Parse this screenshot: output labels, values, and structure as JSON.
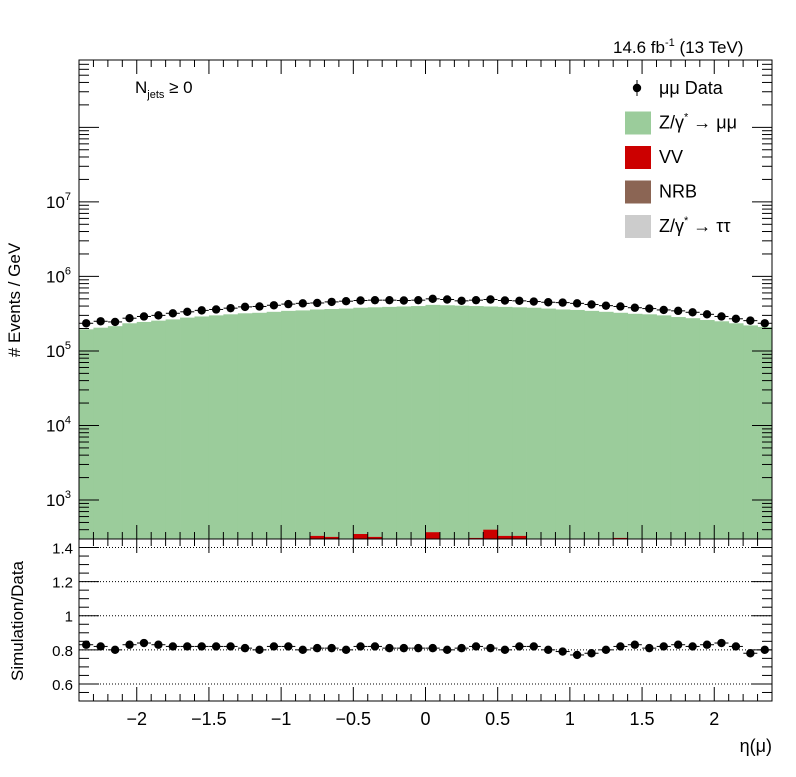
{
  "header": {
    "lumi": "14.6 fb",
    "lumi_exp": "-1",
    "energy": " (13 TeV)"
  },
  "annotation": {
    "main": "N",
    "sub": "jets",
    "rest": " ≥ 0"
  },
  "colors": {
    "zmumu": "#9bcc9b",
    "vv": "#cc0000",
    "nrb": "#8b6554",
    "ztautau": "#cccccc",
    "data": "#000000"
  },
  "chart_data": [
    {
      "type": "bar",
      "xlabel": "η(μ)",
      "ylabel": "# Events / GeV",
      "xlim": [
        -2.4,
        2.4
      ],
      "ylim": [
        300,
        800000000
      ],
      "yscale": "log",
      "y_ticks": [
        {
          "value": 1000,
          "base": "10",
          "exp": "3"
        },
        {
          "value": 10000,
          "base": "10",
          "exp": "4"
        },
        {
          "value": 100000,
          "base": "10",
          "exp": "5"
        },
        {
          "value": 1000000,
          "base": "10",
          "exp": "6"
        },
        {
          "value": 10000000,
          "base": "10",
          "exp": "7"
        }
      ],
      "legend": {
        "position": "top-right",
        "entries": [
          {
            "label": "μμ Data",
            "kind": "marker"
          },
          {
            "label": "Z/γ",
            "sup": "*",
            "tail": " → μμ",
            "kind": "fill",
            "color": "#9bcc9b"
          },
          {
            "label": "VV",
            "kind": "fill",
            "color": "#cc0000"
          },
          {
            "label": "NRB",
            "kind": "fill",
            "color": "#8b6554"
          },
          {
            "label": "Z/γ",
            "sup": "*",
            "tail": " → ττ",
            "kind": "fill",
            "color": "#cccccc"
          }
        ]
      },
      "bin_edges_start": -2.4,
      "bin_width": 0.1,
      "stack": [
        {
          "name": "Z/γ* → μμ",
          "values": [
            195000,
            205000,
            215000,
            235000,
            245000,
            255000,
            265000,
            280000,
            290000,
            300000,
            310000,
            320000,
            325000,
            335000,
            345000,
            350000,
            360000,
            365000,
            370000,
            380000,
            385000,
            390000,
            395000,
            400000,
            415000,
            410000,
            405000,
            400000,
            395000,
            390000,
            385000,
            380000,
            370000,
            360000,
            355000,
            345000,
            335000,
            325000,
            315000,
            310000,
            300000,
            285000,
            275000,
            260000,
            250000,
            235000,
            220000,
            210000
          ]
        },
        {
          "name": "VV",
          "values": [
            150,
            150,
            150,
            150,
            150,
            150,
            180,
            170,
            170,
            220,
            220,
            210,
            190,
            180,
            180,
            250,
            330,
            320,
            240,
            350,
            320,
            250,
            300,
            250,
            370,
            300,
            240,
            310,
            400,
            330,
            330,
            230,
            250,
            280,
            300,
            300,
            260,
            310,
            240,
            250,
            260,
            200,
            160,
            160,
            160,
            160,
            160,
            160
          ]
        }
      ],
      "data_points": {
        "x": [
          -2.35,
          -2.25,
          -2.15,
          -2.05,
          -1.95,
          -1.85,
          -1.75,
          -1.65,
          -1.55,
          -1.45,
          -1.35,
          -1.25,
          -1.15,
          -1.05,
          -0.95,
          -0.85,
          -0.75,
          -0.65,
          -0.55,
          -0.45,
          -0.35,
          -0.25,
          -0.15,
          -0.05,
          0.05,
          0.15,
          0.25,
          0.35,
          0.45,
          0.55,
          0.65,
          0.75,
          0.85,
          0.95,
          1.05,
          1.15,
          1.25,
          1.35,
          1.45,
          1.55,
          1.65,
          1.75,
          1.85,
          1.95,
          2.05,
          2.15,
          2.25,
          2.35
        ],
        "y": [
          235000,
          250000,
          245000,
          275000,
          290000,
          300000,
          320000,
          335000,
          350000,
          360000,
          375000,
          390000,
          395000,
          410000,
          425000,
          435000,
          440000,
          455000,
          465000,
          475000,
          480000,
          480000,
          475000,
          480000,
          500000,
          490000,
          470000,
          480000,
          490000,
          475000,
          470000,
          460000,
          450000,
          445000,
          435000,
          420000,
          405000,
          395000,
          380000,
          370000,
          355000,
          345000,
          330000,
          310000,
          290000,
          270000,
          255000,
          235000
        ]
      }
    },
    {
      "type": "scatter",
      "xlabel": "",
      "ylabel": "Simulation/Data",
      "xlim": [
        -2.4,
        2.4
      ],
      "ylim": [
        0.5,
        1.45
      ],
      "y_ticks": [
        "0.6",
        "0.8",
        "1",
        "1.2",
        "1.4"
      ],
      "x_ticks": [
        "−2",
        "−1.5",
        "−1",
        "−0.5",
        "0",
        "0.5",
        "1",
        "1.5",
        "2"
      ],
      "x_tick_values": [
        -2,
        -1.5,
        -1,
        -0.5,
        0,
        0.5,
        1,
        1.5,
        2
      ],
      "grid_lines": [
        0.6,
        1.0,
        1.2,
        1.4
      ],
      "reference_line": 0.8,
      "points": {
        "x": [
          -2.35,
          -2.25,
          -2.15,
          -2.05,
          -1.95,
          -1.85,
          -1.75,
          -1.65,
          -1.55,
          -1.45,
          -1.35,
          -1.25,
          -1.15,
          -1.05,
          -0.95,
          -0.85,
          -0.75,
          -0.65,
          -0.55,
          -0.45,
          -0.35,
          -0.25,
          -0.15,
          -0.05,
          0.05,
          0.15,
          0.25,
          0.35,
          0.45,
          0.55,
          0.65,
          0.75,
          0.85,
          0.95,
          1.05,
          1.15,
          1.25,
          1.35,
          1.45,
          1.55,
          1.65,
          1.75,
          1.85,
          1.95,
          2.05,
          2.15,
          2.25,
          2.35
        ],
        "y": [
          0.83,
          0.82,
          0.8,
          0.83,
          0.84,
          0.83,
          0.82,
          0.82,
          0.82,
          0.82,
          0.82,
          0.81,
          0.8,
          0.82,
          0.82,
          0.8,
          0.81,
          0.81,
          0.8,
          0.82,
          0.82,
          0.81,
          0.81,
          0.81,
          0.81,
          0.8,
          0.81,
          0.82,
          0.81,
          0.8,
          0.82,
          0.82,
          0.8,
          0.79,
          0.77,
          0.78,
          0.8,
          0.82,
          0.83,
          0.81,
          0.82,
          0.83,
          0.82,
          0.83,
          0.84,
          0.82,
          0.78,
          0.8
        ]
      }
    }
  ]
}
